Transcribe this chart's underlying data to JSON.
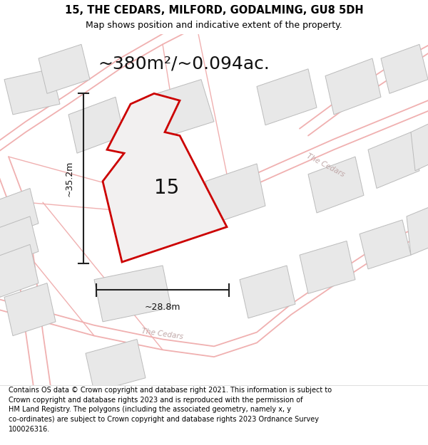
{
  "title_line1": "15, THE CEDARS, MILFORD, GODALMING, GU8 5DH",
  "title_line2": "Map shows position and indicative extent of the property.",
  "area_text": "~380m²/~0.094ac.",
  "dimension_width": "~28.8m",
  "dimension_height": "~35.2m",
  "plot_number": "15",
  "footer_text": "Contains OS data © Crown copyright and database right 2021. This information is subject to Crown copyright and database rights 2023 and is reproduced with the permission of HM Land Registry. The polygons (including the associated geometry, namely x, y co-ordinates) are subject to Crown copyright and database rights 2023 Ordnance Survey 100026316.",
  "map_bg": "#f8f8f8",
  "building_fill": "#e8e8e8",
  "building_edge": "#bbbbbb",
  "road_color": "#f0b0b0",
  "plot_fill": "#f2f0f0",
  "plot_edge": "#cc0000",
  "dim_color": "#222222",
  "road_label_color": "#c0a8a8",
  "title_fs": 10.5,
  "subtitle_fs": 9,
  "area_fs": 18,
  "number_fs": 20,
  "dim_fs": 9,
  "road_label_fs": 7.5,
  "footer_fs": 7.0,
  "title_bold": true
}
